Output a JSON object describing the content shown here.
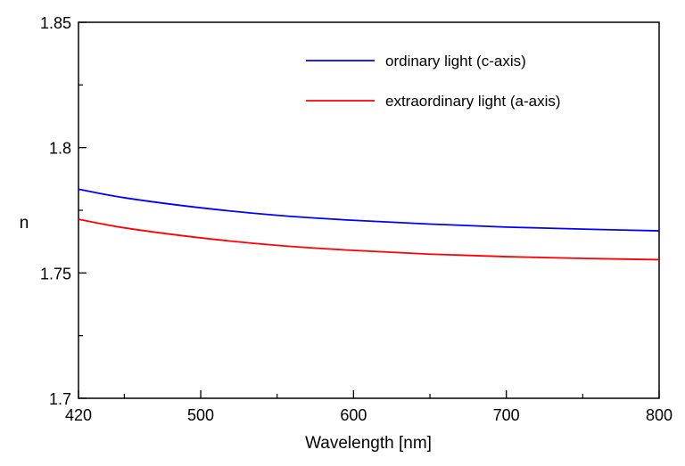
{
  "chart_data": {
    "type": "line",
    "title": "",
    "xlabel": "Wavelength [nm]",
    "ylabel": "n",
    "xlim": [
      420,
      800
    ],
    "ylim": [
      1.7,
      1.85
    ],
    "xticks": [
      "420",
      "500",
      "600",
      "700",
      "800"
    ],
    "xtick_values": [
      420,
      500,
      600,
      700,
      800
    ],
    "xminor": [
      450,
      550,
      650,
      750
    ],
    "yticks": [
      "1.7",
      "1.75",
      "1.8",
      "1.85"
    ],
    "ytick_values": [
      1.7,
      1.75,
      1.8,
      1.85
    ],
    "yminor": [
      1.725,
      1.775,
      1.825
    ],
    "grid": false,
    "legend_position": "top-right",
    "x": [
      420,
      450,
      500,
      550,
      600,
      650,
      700,
      750,
      800
    ],
    "series": [
      {
        "name": "ordinary light (c-axis)",
        "color": "#0000ff",
        "values": [
          1.7834,
          1.78,
          1.776,
          1.773,
          1.771,
          1.7695,
          1.7683,
          1.7675,
          1.7668
        ]
      },
      {
        "name": "extraordinary light (a-axis)",
        "color": "#ff0000",
        "values": [
          1.7714,
          1.768,
          1.764,
          1.761,
          1.759,
          1.7575,
          1.7565,
          1.7558,
          1.7553
        ]
      }
    ]
  }
}
